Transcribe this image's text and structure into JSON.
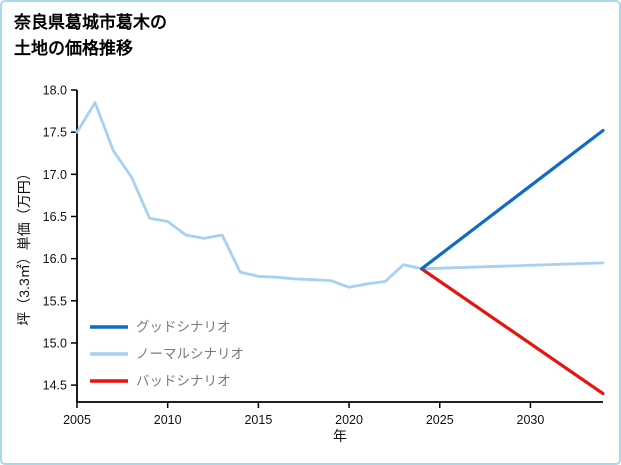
{
  "page": {
    "border_color": "#a9d8e8",
    "background": "#ffffff"
  },
  "title_lines": [
    "奈良県葛城市葛木の",
    "土地の価格推移"
  ],
  "chart_data": {
    "type": "line",
    "title": "奈良県葛城市葛木の 土地の価格推移",
    "xlabel": "年",
    "ylabel": "坪（3.3㎡）単価（万円）",
    "xlim": [
      2005,
      2034
    ],
    "ylim": [
      14.3,
      18.0
    ],
    "xticks": [
      2005,
      2010,
      2015,
      2020,
      2025,
      2030
    ],
    "xtick_labels": [
      "2005",
      "2010",
      "2015",
      "2020",
      "2025",
      "2030"
    ],
    "yticks": [
      14.5,
      15.0,
      15.5,
      16.0,
      16.5,
      17.0,
      17.5,
      18.0
    ],
    "ytick_labels": [
      "14.5",
      "15.0",
      "15.5",
      "16.0",
      "16.5",
      "17.0",
      "17.5",
      "18.0"
    ],
    "grid": false,
    "legend_position": "lower left",
    "legend_text_color": "#7a7a7a",
    "axis_color": "#000000",
    "series": [
      {
        "name": "グッドシナリオ",
        "color": "#0f6bc5",
        "width": 3.2,
        "points": [
          [
            2024,
            15.88
          ],
          [
            2034,
            17.52
          ]
        ]
      },
      {
        "name": "ノーマルシナリオ",
        "color": "#a6d1f2",
        "width": 2.8,
        "points": [
          [
            2005,
            17.5
          ],
          [
            2006,
            17.85
          ],
          [
            2007,
            17.28
          ],
          [
            2008,
            16.97
          ],
          [
            2009,
            16.48
          ],
          [
            2010,
            16.44
          ],
          [
            2011,
            16.28
          ],
          [
            2012,
            16.24
          ],
          [
            2013,
            16.28
          ],
          [
            2014,
            15.84
          ],
          [
            2015,
            15.79
          ],
          [
            2016,
            15.78
          ],
          [
            2017,
            15.76
          ],
          [
            2018,
            15.75
          ],
          [
            2019,
            15.74
          ],
          [
            2020,
            15.66
          ],
          [
            2021,
            15.7
          ],
          [
            2022,
            15.73
          ],
          [
            2023,
            15.93
          ],
          [
            2024,
            15.88
          ],
          [
            2034,
            15.95
          ]
        ]
      },
      {
        "name": "バッドシナリオ",
        "color": "#e8130c",
        "width": 3.2,
        "points": [
          [
            2024,
            15.88
          ],
          [
            2034,
            14.4
          ]
        ]
      }
    ]
  }
}
